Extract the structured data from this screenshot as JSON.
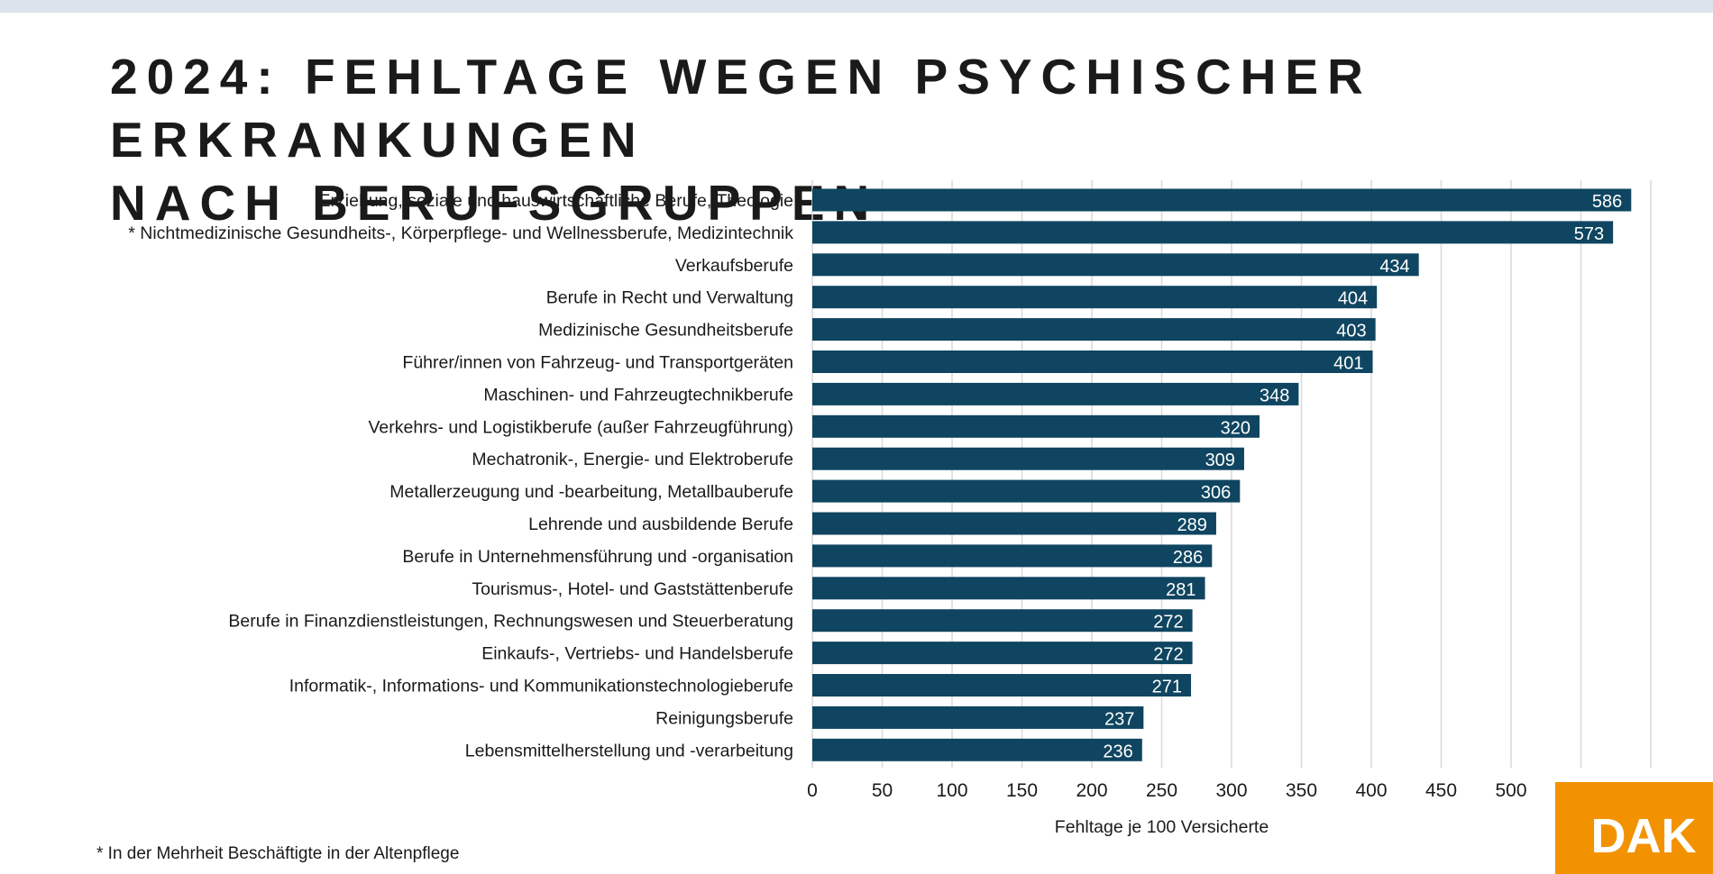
{
  "title": {
    "line1": "2024: FEHLTAGE WEGEN PSYCHISCHER ERKRANKUNGEN",
    "line2": "NACH BERUFSGRUPPEN"
  },
  "footnote": "* In der Mehrheit Beschäftigte in der Altenpflege",
  "logo": {
    "text": "DAK",
    "color": "#f39200"
  },
  "colors": {
    "bar": "#0f4560",
    "bar_label": "#ffffff",
    "grid": "#d9d9d9",
    "text": "#1a1a1a"
  },
  "chart_data": {
    "type": "bar",
    "orientation": "horizontal",
    "categories": [
      "Erziehung, soziale und hauswirtschaftliche Berufe, Theologie",
      "* Nichtmedizinische Gesundheits-, Körperpflege- und Wellnessberufe, Medizintechnik",
      "Verkaufsberufe",
      "Berufe in Recht und Verwaltung",
      "Medizinische Gesundheitsberufe",
      "Führer/innen von Fahrzeug- und Transportgeräten",
      "Maschinen- und Fahrzeugtechnikberufe",
      "Verkehrs- und Logistikberufe (außer Fahrzeugführung)",
      "Mechatronik-, Energie- und Elektroberufe",
      "Metallerzeugung und -bearbeitung, Metallbauberufe",
      "Lehrende und ausbildende Berufe",
      "Berufe in Unternehmensführung und -organisation",
      "Tourismus-, Hotel- und Gaststättenberufe",
      "Berufe in Finanzdienstleistungen, Rechnungswesen und Steuerberatung",
      "Einkaufs-, Vertriebs- und Handelsberufe",
      "Informatik-, Informations- und Kommunikationstechnologieberufe",
      "Reinigungsberufe",
      "Lebensmittelherstellung und -verarbeitung"
    ],
    "values": [
      586,
      573,
      434,
      404,
      403,
      401,
      348,
      320,
      309,
      306,
      289,
      286,
      281,
      272,
      272,
      271,
      237,
      236
    ],
    "xlabel": "Fehltage je 100 Versicherte",
    "xlim": [
      0,
      600
    ],
    "xticks": [
      0,
      50,
      100,
      150,
      200,
      250,
      300,
      350,
      400,
      450,
      500,
      550,
      600
    ],
    "grid": "vertical",
    "data_labels": true
  }
}
